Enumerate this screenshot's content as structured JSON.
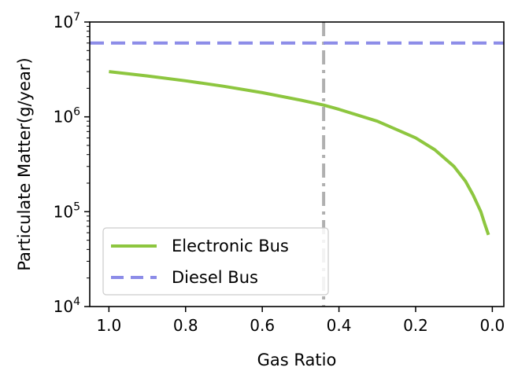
{
  "chart_data": {
    "type": "line",
    "title": "",
    "xlabel": "Gas Ratio",
    "ylabel": "Particulate Matter(g/year)",
    "xlim": [
      1.05,
      -0.03
    ],
    "x_inverted": true,
    "ylim": [
      10000,
      10000000
    ],
    "yscale": "log",
    "grid": false,
    "legend_placement": "lower-left",
    "x_ticks": [
      {
        "value": 1.0,
        "label": "1.0"
      },
      {
        "value": 0.8,
        "label": "0.8"
      },
      {
        "value": 0.6,
        "label": "0.6"
      },
      {
        "value": 0.4,
        "label": "0.4"
      },
      {
        "value": 0.2,
        "label": "0.2"
      },
      {
        "value": 0.0,
        "label": "0.0"
      }
    ],
    "y_ticks": [
      {
        "value": 10000,
        "base": "10",
        "exp": "4"
      },
      {
        "value": 100000,
        "base": "10",
        "exp": "5"
      },
      {
        "value": 1000000,
        "base": "10",
        "exp": "6"
      },
      {
        "value": 10000000,
        "base": "10",
        "exp": "7"
      }
    ],
    "vline": {
      "x": 0.44,
      "color": "#b0b0b0",
      "style": "dash-dot"
    },
    "series": [
      {
        "name": "Electronic Bus",
        "color": "#8dc63f",
        "style": "solid",
        "x": [
          1.0,
          0.9,
          0.8,
          0.7,
          0.6,
          0.5,
          0.44,
          0.4,
          0.3,
          0.2,
          0.15,
          0.1,
          0.07,
          0.05,
          0.03,
          0.02,
          0.01
        ],
        "y": [
          3000000,
          2700000,
          2400000,
          2100000,
          1800000,
          1500000,
          1330000,
          1200000,
          900000,
          600000,
          450000,
          300000,
          210000,
          150000,
          100000,
          75000,
          57000
        ]
      },
      {
        "name": "Diesel Bus",
        "color": "#8c8ce8",
        "style": "dashed",
        "x": [
          1.05,
          -0.03
        ],
        "y": [
          6000000,
          6000000
        ]
      }
    ]
  }
}
